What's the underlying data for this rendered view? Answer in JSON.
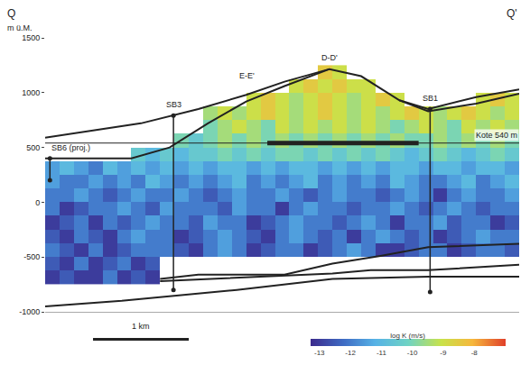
{
  "chart_data": {
    "type": "heatmap",
    "section_labels": [
      "Q",
      "Q'"
    ],
    "ylabel": "m ü.M.",
    "tick_labels": "y",
    "xlim": [
      0,
      4.95
    ],
    "ylim": [
      -1000,
      1500
    ],
    "yticks": [
      -1000,
      -500,
      0,
      500,
      1000,
      1500
    ],
    "x": [
      0.075,
      0.225,
      0.375,
      0.525,
      0.675,
      0.825,
      0.975,
      1.125,
      1.275,
      1.425,
      1.575,
      1.725,
      1.875,
      2.025,
      2.175,
      2.325,
      2.475,
      2.625,
      2.775,
      2.925,
      3.075,
      3.225,
      3.375,
      3.525,
      3.675,
      3.825,
      3.975,
      4.125,
      4.275,
      4.425,
      4.575,
      4.725,
      4.875
    ],
    "y": [
      -687.5,
      -562.5,
      -437.5,
      -312.5,
      -187.5,
      -62.5,
      62.5,
      187.5,
      312.5,
      437.5,
      562.5,
      687.5,
      812.5,
      937.5,
      1062.5,
      1187.5
    ],
    "z": [
      [
        -13,
        -12.5,
        -13,
        -13,
        -12,
        -13,
        -12.5,
        -13,
        null,
        null,
        null,
        null,
        null,
        null,
        null,
        null,
        null,
        null,
        null,
        null,
        null,
        null,
        null,
        null,
        null,
        null,
        null,
        null,
        null,
        null,
        null,
        null,
        null
      ],
      [
        -12.5,
        -13,
        -12,
        -13,
        -12.5,
        -12,
        -13,
        -12.5,
        null,
        null,
        null,
        null,
        null,
        null,
        null,
        null,
        null,
        null,
        null,
        null,
        null,
        null,
        null,
        null,
        null,
        null,
        null,
        null,
        null,
        null,
        null,
        null,
        null
      ],
      [
        -12,
        -12.5,
        -13,
        -12,
        -13,
        -12.5,
        -12,
        -12,
        -12,
        -12.5,
        -13,
        -12,
        -11.5,
        -12,
        -13,
        -12.5,
        -12,
        -12,
        -13,
        -12.5,
        -12,
        -11.5,
        -12,
        -13,
        -13,
        -12.5,
        -12,
        -12,
        -13,
        -12.5,
        -12,
        -12,
        -12.5
      ],
      [
        -12.5,
        -13,
        -12,
        -12.5,
        -13,
        -12,
        -11.5,
        -12,
        -12,
        -13,
        -12.5,
        -12,
        -11.5,
        -12,
        -12.5,
        -13,
        -12,
        -11.5,
        -12,
        -12.5,
        -12,
        -13,
        -12,
        -11.5,
        -12,
        -12.5,
        -12,
        -13,
        -12.5,
        -12,
        -11.5,
        -12,
        -12
      ],
      [
        -13,
        -12.5,
        -12,
        -13,
        -12,
        -12.5,
        -12,
        -11.5,
        -12,
        -12,
        -12.5,
        -11.5,
        -12,
        -12,
        -13,
        -12.5,
        -12,
        -11.5,
        -12,
        -12,
        -12.5,
        -12,
        -11.5,
        -12,
        -13,
        -12,
        -12,
        -11.5,
        -12.5,
        -12,
        -12,
        -13,
        -12.5
      ],
      [
        -12,
        -13,
        -12.5,
        -12,
        -12,
        -11.5,
        -12,
        -12.5,
        -11.5,
        -12,
        -12,
        -12,
        -12.5,
        -11.5,
        -12,
        -12,
        -13,
        -12,
        -11.5,
        -12,
        -12,
        -12.5,
        -12,
        -12,
        -11.5,
        -12,
        -12.5,
        -12,
        -11.5,
        -12,
        -12.5,
        -12,
        -12
      ],
      [
        -12,
        -12,
        -11.5,
        -12,
        -12.5,
        -12,
        -11.5,
        -12,
        -12,
        -11.5,
        -12,
        -12.5,
        -12,
        -11.5,
        -12,
        -12,
        -11.5,
        -12,
        -12.5,
        -12,
        -11.5,
        -12,
        -12,
        -12.5,
        -12,
        -11.5,
        -12,
        -13,
        -12,
        -11.5,
        -12,
        -12,
        -11.5
      ],
      [
        -11.5,
        -12,
        -12,
        -11.5,
        -12,
        -11.5,
        -12,
        -11,
        -11.5,
        -12,
        -11.5,
        -12,
        -11.5,
        -11,
        -12,
        -11.5,
        -12,
        -11.5,
        -11,
        -12,
        -11.5,
        -12,
        -11.5,
        -12,
        -11,
        -11.5,
        -12,
        -12,
        -11.5,
        -11,
        -12,
        -11.5,
        -11
      ],
      [
        -11.5,
        -11,
        -11.5,
        -12,
        -11,
        -11.5,
        -11,
        -11.5,
        -11,
        -11.5,
        -11,
        -11.5,
        -11,
        -11,
        -11.5,
        -11,
        -11.5,
        -11,
        -11,
        -11.5,
        -11,
        -11.5,
        -11,
        -11.5,
        -11,
        -11,
        -11.5,
        -11,
        -11,
        -11.5,
        -11,
        -11,
        -11.5
      ],
      [
        null,
        null,
        null,
        null,
        null,
        null,
        -10.5,
        -11,
        -10.5,
        -11,
        -10.5,
        -10.5,
        -10,
        -10.5,
        -10,
        -10.5,
        -10,
        -10,
        -10.5,
        -10,
        -10.5,
        -10,
        -10.5,
        -10,
        -10.5,
        -11,
        -10.5,
        -10,
        -10.5,
        -11,
        -10.5,
        -10,
        -10.5
      ],
      [
        null,
        null,
        null,
        null,
        null,
        null,
        null,
        null,
        null,
        -10,
        -10.5,
        -10,
        -9.5,
        -10,
        -9.5,
        -10,
        -9.5,
        -10,
        -9.5,
        -10,
        -9.5,
        -10,
        -9.5,
        -10,
        -9.5,
        -10,
        -10,
        -9.5,
        -10,
        -9.5,
        -10,
        -9.5,
        -10
      ],
      [
        null,
        null,
        null,
        null,
        null,
        null,
        null,
        null,
        null,
        null,
        null,
        -10,
        -9.5,
        -9,
        -9.5,
        -10,
        -9,
        -9.5,
        -9,
        -9.5,
        -9,
        -9.5,
        -9,
        -9.5,
        -10,
        -9.5,
        -9,
        -9.5,
        -10,
        -9,
        -9.5,
        -9,
        -9.5
      ],
      [
        null,
        null,
        null,
        null,
        null,
        null,
        null,
        null,
        null,
        null,
        null,
        -9.5,
        -9,
        -9.5,
        -9,
        -8.5,
        -9,
        -9.5,
        -9,
        -8.5,
        -9,
        -9.5,
        -9,
        -9.5,
        -9,
        -8.5,
        -9,
        -9.5,
        -9,
        -8.5,
        -9,
        -9.5,
        -9
      ],
      [
        null,
        null,
        null,
        null,
        null,
        null,
        null,
        null,
        null,
        null,
        null,
        null,
        null,
        null,
        -9,
        -8.5,
        -9,
        -9.5,
        -9,
        -8.5,
        -9,
        -9.5,
        -9,
        -8.5,
        -9,
        null,
        null,
        null,
        null,
        null,
        -9,
        -8.5,
        -9
      ],
      [
        null,
        null,
        null,
        null,
        null,
        null,
        null,
        null,
        null,
        null,
        null,
        null,
        null,
        null,
        null,
        null,
        null,
        -9,
        -8.5,
        -9,
        -8.5,
        -9,
        -9,
        null,
        null,
        null,
        null,
        null,
        null,
        null,
        null,
        null,
        null
      ],
      [
        null,
        null,
        null,
        null,
        null,
        null,
        null,
        null,
        null,
        null,
        null,
        null,
        null,
        null,
        null,
        null,
        null,
        null,
        null,
        -8.5,
        -9,
        null,
        null,
        null,
        null,
        null,
        null,
        null,
        null,
        null,
        null,
        null,
        null
      ]
    ],
    "colorbar": {
      "title": "log K (m/s)",
      "zlim": [
        -13.3,
        -7
      ],
      "ticks": [
        -13,
        -12,
        -11,
        -10,
        -9,
        -8
      ]
    },
    "lines": [
      {
        "x": [
          0,
          1.0,
          1.6,
          2.1,
          2.5,
          2.97,
          3.3,
          3.7,
          4.0,
          4.5,
          4.95
        ],
        "y": [
          590,
          720,
          850,
          980,
          1100,
          1215,
          1150,
          930,
          850,
          960,
          1030
        ]
      },
      {
        "x": [
          0,
          0.9,
          1.3,
          1.7,
          2.1,
          2.5,
          2.97
        ],
        "y": [
          400,
          400,
          500,
          720,
          920,
          1060,
          1215
        ]
      },
      {
        "x": [
          3.7,
          4.0,
          4.5,
          4.95
        ],
        "y": [
          930,
          830,
          900,
          990
        ]
      },
      {
        "x": [
          1.2,
          1.6,
          2.5,
          3.0,
          3.5,
          4.0,
          4.95
        ],
        "y": [
          -700,
          -660,
          -660,
          -560,
          -490,
          -410,
          -380
        ]
      },
      {
        "x": [
          1.2,
          2.0,
          3.0,
          3.4,
          4.0,
          4.95
        ],
        "y": [
          -720,
          -690,
          -650,
          -620,
          -620,
          -570
        ]
      },
      {
        "x": [
          0,
          0.8,
          2.0,
          3.0,
          4.0,
          4.95
        ],
        "y": [
          -950,
          -900,
          -800,
          -700,
          -680,
          -680
        ]
      }
    ],
    "boreholes": [
      {
        "label": "SB6 (proj.)",
        "x": 0.05,
        "top": 400,
        "bottom": 200
      },
      {
        "label": "SB3",
        "x": 1.34,
        "top": 790,
        "bottom": -800
      },
      {
        "label": "SB1",
        "x": 4.02,
        "top": 850,
        "bottom": -820
      }
    ],
    "annotations": [
      {
        "text": "E-E'",
        "x": 2.11,
        "y": 1100
      },
      {
        "text": "D-D'",
        "x": 2.97,
        "y": 1260
      }
    ],
    "level": {
      "label": "Kote 540 m",
      "y": 540,
      "x": [
        0,
        4.95
      ],
      "bar_x": [
        2.32,
        3.9
      ]
    },
    "scale_bar": {
      "label": "1 km",
      "length": 1
    }
  }
}
